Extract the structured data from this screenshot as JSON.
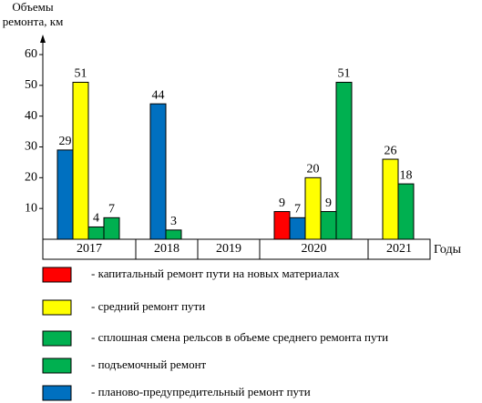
{
  "chart_data": {
    "type": "bar",
    "y_label": [
      "Объемы",
      "ремонта, км"
    ],
    "x_label": "Годы",
    "categories": [
      "2017",
      "2018",
      "2019",
      "2020",
      "2021"
    ],
    "series": [
      {
        "name": "- капитальный ремонт пути на новых материалах",
        "color": "#ff0000",
        "values": [
          null,
          null,
          null,
          9,
          null
        ]
      },
      {
        "name": "- средний ремонт пути",
        "color": "#ffff00",
        "values": [
          51,
          null,
          null,
          20,
          26
        ]
      },
      {
        "name": "- сплошная смена рельсов в объеме среднего ремонта пути",
        "color": "#00b050",
        "values": [
          4,
          3,
          null,
          9,
          null
        ]
      },
      {
        "name": "- подъемочный ремонт",
        "color": "#00b050",
        "values": [
          7,
          null,
          null,
          51,
          18
        ]
      },
      {
        "name": "- планово-предупредительный ремонт пути",
        "color": "#0070c0",
        "values": [
          29,
          44,
          null,
          7,
          null
        ]
      }
    ],
    "ylim": [
      0,
      60
    ],
    "yticks": [
      10,
      20,
      30,
      40,
      50,
      60
    ]
  }
}
